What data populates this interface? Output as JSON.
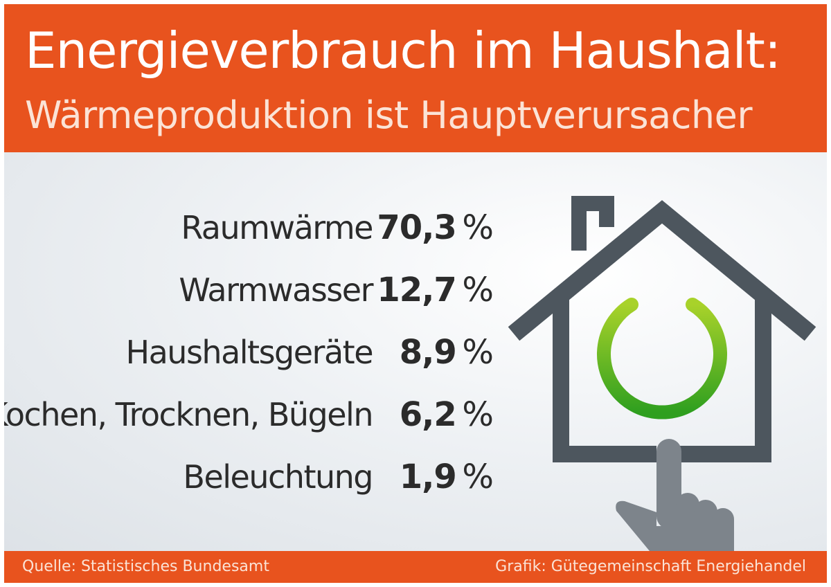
{
  "header": {
    "title": "Energieverbrauch im Haushalt:",
    "subtitle": "Wärmeproduktion ist Hauptverursacher"
  },
  "chart_data": {
    "type": "table",
    "title": "Energieverbrauch im Haushalt:",
    "subtitle": "Wärmeproduktion ist Hauptverursacher",
    "unit": "%",
    "categories": [
      "Raumwärme",
      "Warmwasser",
      "Haushaltsgeräte",
      "Kochen, Trocknen, Bügeln",
      "Beleuchtung"
    ],
    "values": [
      70.3,
      12.7,
      8.9,
      6.2,
      1.9
    ],
    "value_labels": [
      "70,3",
      "12,7",
      "8,9",
      "6,2",
      "1,9"
    ]
  },
  "illustration": {
    "icon": "house-power-button-icon",
    "colors": {
      "house": "#4d565e",
      "power": "#3fae1f",
      "hand": "#7d848b"
    }
  },
  "footer": {
    "source": "Quelle: Statistisches Bundesamt",
    "credit": "Grafik: Gütegemeinschaft Energiehandel"
  },
  "colors": {
    "accent": "#e8531e",
    "text": "#2b2b2b"
  }
}
